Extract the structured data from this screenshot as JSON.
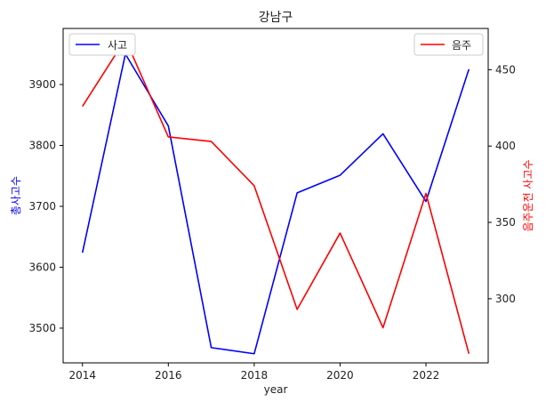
{
  "chart_data": {
    "type": "line",
    "title": "강남구",
    "xlabel": "year",
    "ylabel_left": "총사고수",
    "ylabel_right": "음주운전 사고수",
    "x": [
      2014,
      2015,
      2016,
      2017,
      2018,
      2019,
      2020,
      2021,
      2022,
      2023
    ],
    "x_ticks": [
      "2014",
      "2016",
      "2018",
      "2020",
      "2022"
    ],
    "y_left_ticks": [
      "3500",
      "3600",
      "3700",
      "3800",
      "3900"
    ],
    "y_right_ticks": [
      "300",
      "350",
      "400",
      "450"
    ],
    "xlim": [
      2013.55,
      2023.45
    ],
    "ylim_left": [
      3443,
      3992
    ],
    "ylim_right": [
      258,
      477
    ],
    "grid": false,
    "series": [
      {
        "name": "사고",
        "axis": "left",
        "color": "#0000ff",
        "values": [
          3624,
          3950,
          3832,
          3468,
          3458,
          3722,
          3751,
          3819,
          3708,
          3925
        ]
      },
      {
        "name": "음주",
        "axis": "right",
        "color": "#ff0000",
        "values": [
          426,
          470,
          406,
          403,
          374,
          293,
          343,
          281,
          369,
          264
        ]
      }
    ],
    "legend_left_placement": "upper-left",
    "legend_right_placement": "upper-right"
  }
}
